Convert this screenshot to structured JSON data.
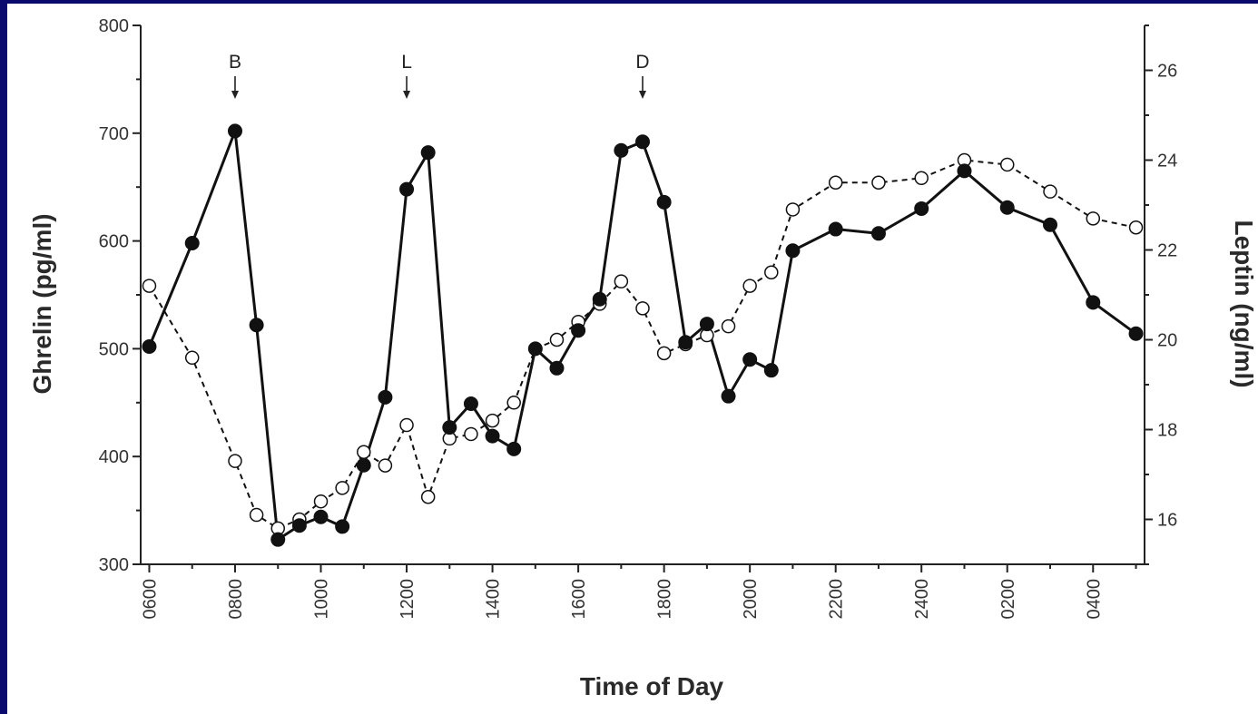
{
  "chart_data": {
    "type": "line",
    "title": "",
    "xlabel": "Time of Day",
    "ylabel_left": "Ghrelin (pg/ml)",
    "ylabel_right": "Leptin (ng/ml)",
    "x_tick_labels": [
      "0600",
      "0800",
      "1000",
      "1200",
      "1400",
      "1600",
      "1800",
      "2000",
      "2200",
      "2400",
      "0200",
      "0400"
    ],
    "x_tick_hours": [
      0,
      2,
      4,
      6,
      8,
      10,
      12,
      14,
      16,
      18,
      20,
      22
    ],
    "xlim": [
      -0.2,
      23.2
    ],
    "ylim_left": [
      300,
      800
    ],
    "yticks_left": [
      "300",
      "400",
      "500",
      "600",
      "700",
      "800"
    ],
    "ylim_right": [
      15,
      27
    ],
    "yticks_right": [
      "16",
      "18",
      "20",
      "22",
      "24",
      "26"
    ],
    "meals": [
      {
        "label": "B",
        "hour": 2.0
      },
      {
        "label": "L",
        "hour": 6.0
      },
      {
        "label": "D",
        "hour": 11.5
      }
    ],
    "series": [
      {
        "axis": "left",
        "style": "solid",
        "marker": "filled-circle",
        "color": "#111111",
        "x": [
          0,
          1,
          2,
          2.5,
          3,
          3.5,
          4,
          4.5,
          5,
          5.5,
          6,
          6.5,
          7,
          7.5,
          8,
          8.5,
          9,
          9.5,
          10,
          10.5,
          11,
          11.5,
          12,
          12.5,
          13,
          13.5,
          14,
          14.5,
          15,
          16,
          17,
          18,
          19,
          20,
          21,
          22,
          23
        ],
        "y": [
          502,
          598,
          702,
          522,
          323,
          336,
          344,
          335,
          392,
          455,
          648,
          682,
          427,
          449,
          419,
          407,
          500,
          482,
          517,
          546,
          684,
          692,
          636,
          506,
          523,
          456,
          490,
          480,
          591,
          611,
          607,
          630,
          665,
          631,
          615,
          543,
          514
        ]
      },
      {
        "axis": "right",
        "style": "dashed",
        "marker": "open-circle",
        "color": "#111111",
        "x": [
          0,
          1,
          2,
          2.5,
          3,
          3.5,
          4,
          4.5,
          5,
          5.5,
          6,
          6.5,
          7,
          7.5,
          8,
          8.5,
          9,
          9.5,
          10,
          10.5,
          11,
          11.5,
          12,
          12.5,
          13,
          13.5,
          14,
          14.5,
          15,
          16,
          17,
          18,
          19,
          20,
          21,
          22,
          23
        ],
        "y": [
          21.2,
          19.6,
          17.3,
          16.1,
          15.8,
          16.0,
          16.4,
          16.7,
          17.5,
          17.2,
          18.1,
          16.5,
          17.8,
          17.9,
          18.2,
          18.6,
          19.8,
          20.0,
          20.4,
          20.8,
          21.3,
          20.7,
          19.7,
          19.9,
          20.1,
          20.3,
          21.2,
          21.5,
          22.9,
          23.5,
          23.5,
          23.6,
          24.0,
          23.9,
          23.3,
          22.7,
          22.5
        ]
      }
    ]
  }
}
